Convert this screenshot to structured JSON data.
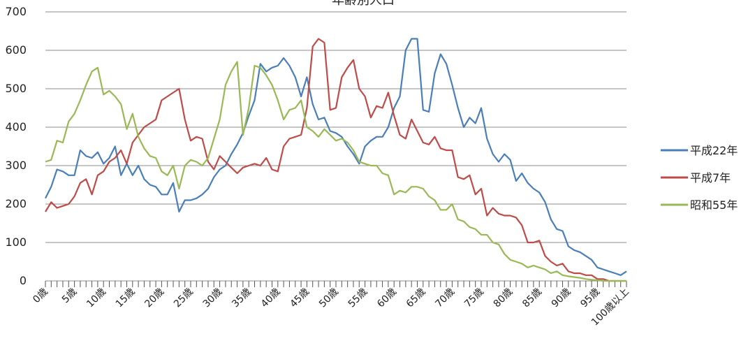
{
  "chart_data": {
    "type": "line",
    "title": "年齢別人口",
    "xlabel": "",
    "ylabel": "",
    "ylim": [
      0,
      700
    ],
    "yticks": [
      0,
      100,
      200,
      300,
      400,
      500,
      600,
      700
    ],
    "grid": true,
    "legend_position": "right",
    "categories": [
      "0歳",
      "1",
      "2",
      "3",
      "4",
      "5歳",
      "6",
      "7",
      "8",
      "9",
      "10歳",
      "11",
      "12",
      "13",
      "14",
      "15歳",
      "16",
      "17",
      "18",
      "19",
      "20歳",
      "21",
      "22",
      "23",
      "24",
      "25歳",
      "26",
      "27",
      "28",
      "29",
      "30歳",
      "31",
      "32",
      "33",
      "34",
      "35歳",
      "36",
      "37",
      "38",
      "39",
      "40歳",
      "41",
      "42",
      "43",
      "44",
      "45歳",
      "46",
      "47",
      "48",
      "49",
      "50歳",
      "51",
      "52",
      "53",
      "54",
      "55歳",
      "56",
      "57",
      "58",
      "59",
      "60歳",
      "61",
      "62",
      "63",
      "64",
      "65歳",
      "66",
      "67",
      "68",
      "69",
      "70歳",
      "71",
      "72",
      "73",
      "74",
      "75歳",
      "76",
      "77",
      "78",
      "79",
      "80歳",
      "81",
      "82",
      "83",
      "84",
      "85歳",
      "86",
      "87",
      "88",
      "89",
      "90歳",
      "91",
      "92",
      "93",
      "94",
      "95歳",
      "96",
      "97",
      "98",
      "99",
      "100歳以上"
    ],
    "xtick_labels": [
      "0歳",
      "5歳",
      "10歳",
      "15歳",
      "20歳",
      "25歳",
      "30歳",
      "35歳",
      "40歳",
      "45歳",
      "50歳",
      "55歳",
      "60歳",
      "65歳",
      "70歳",
      "75歳",
      "80歳",
      "85歳",
      "90歳",
      "95歳",
      "100歳以上"
    ],
    "series": [
      {
        "name": "平成22年",
        "color": "#4A7EBB",
        "values": [
          215,
          245,
          290,
          285,
          275,
          275,
          340,
          325,
          320,
          335,
          305,
          320,
          350,
          275,
          305,
          275,
          300,
          265,
          250,
          245,
          225,
          225,
          255,
          180,
          210,
          210,
          215,
          225,
          240,
          270,
          290,
          300,
          330,
          355,
          385,
          430,
          470,
          565,
          545,
          555,
          560,
          580,
          560,
          530,
          480,
          530,
          460,
          420,
          425,
          390,
          385,
          375,
          350,
          330,
          305,
          350,
          365,
          375,
          375,
          400,
          450,
          480,
          600,
          630,
          630,
          445,
          440,
          540,
          590,
          565,
          510,
          450,
          400,
          425,
          410,
          450,
          370,
          330,
          310,
          330,
          315,
          260,
          280,
          255,
          240,
          230,
          205,
          160,
          135,
          130,
          90,
          80,
          75,
          65,
          55,
          35,
          30,
          25,
          20,
          15,
          25
        ]
      },
      {
        "name": "平成7年",
        "color": "#BE4B48",
        "values": [
          180,
          205,
          190,
          195,
          200,
          220,
          255,
          265,
          225,
          275,
          285,
          310,
          320,
          340,
          305,
          360,
          380,
          400,
          410,
          420,
          470,
          480,
          490,
          500,
          420,
          365,
          375,
          370,
          310,
          290,
          325,
          310,
          295,
          280,
          295,
          300,
          305,
          300,
          320,
          290,
          285,
          350,
          370,
          375,
          380,
          450,
          610,
          630,
          620,
          445,
          450,
          530,
          555,
          575,
          500,
          480,
          425,
          455,
          450,
          490,
          430,
          380,
          370,
          420,
          390,
          360,
          355,
          375,
          345,
          340,
          340,
          270,
          265,
          275,
          225,
          240,
          170,
          190,
          175,
          170,
          170,
          165,
          145,
          100,
          100,
          105,
          65,
          50,
          40,
          45,
          25,
          20,
          20,
          15,
          15,
          5,
          5,
          0,
          0,
          0,
          0
        ]
      },
      {
        "name": "昭和55年",
        "color": "#98B954",
        "values": [
          310,
          315,
          365,
          360,
          415,
          435,
          470,
          510,
          545,
          555,
          485,
          495,
          480,
          460,
          395,
          435,
          375,
          345,
          325,
          320,
          285,
          275,
          300,
          240,
          300,
          315,
          310,
          300,
          320,
          370,
          420,
          510,
          545,
          570,
          380,
          450,
          560,
          555,
          535,
          510,
          470,
          420,
          445,
          450,
          470,
          400,
          390,
          375,
          395,
          380,
          365,
          370,
          360,
          340,
          310,
          305,
          300,
          300,
          280,
          275,
          225,
          235,
          230,
          245,
          245,
          240,
          220,
          210,
          185,
          185,
          200,
          160,
          155,
          140,
          135,
          120,
          120,
          100,
          95,
          70,
          55,
          50,
          45,
          35,
          40,
          35,
          30,
          20,
          25,
          15,
          12,
          10,
          8,
          5,
          3,
          2,
          0,
          0,
          0,
          0,
          0
        ]
      }
    ]
  }
}
